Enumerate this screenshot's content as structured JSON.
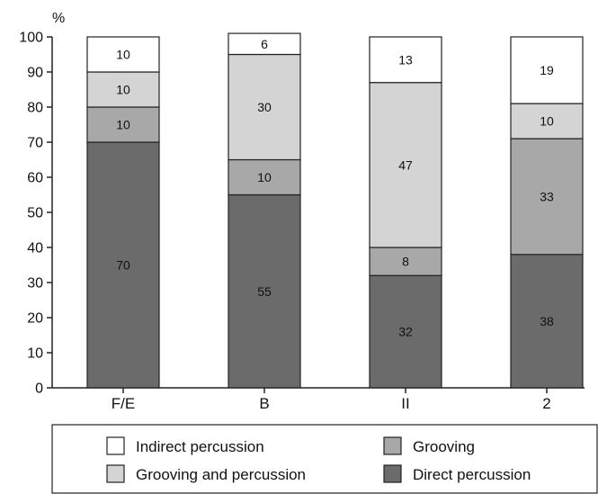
{
  "chart_data": {
    "type": "bar",
    "stacked": true,
    "ylabel": "%",
    "ylim": [
      0,
      100
    ],
    "yticks": [
      "0",
      "10",
      "20",
      "30",
      "40",
      "50",
      "60",
      "70",
      "80",
      "90",
      "100"
    ],
    "categories": [
      "F/E",
      "B",
      "II",
      "2"
    ],
    "series": [
      {
        "name": "Direct percussion",
        "color": "#6b6b6b",
        "values": [
          70,
          55,
          32,
          38
        ],
        "labels": [
          "70",
          "55",
          "32",
          "38"
        ]
      },
      {
        "name": "Grooving",
        "color": "#a8a8a8",
        "values": [
          10,
          10,
          8,
          33
        ],
        "labels": [
          "10",
          "10",
          "8",
          "33"
        ]
      },
      {
        "name": "Grooving and percussion",
        "color": "#d4d4d4",
        "values": [
          10,
          30,
          47,
          10
        ],
        "labels": [
          "10",
          "30",
          "47",
          "10"
        ]
      },
      {
        "name": "Indirect percussion",
        "color": "#ffffff",
        "values": [
          10,
          6,
          13,
          19
        ],
        "labels": [
          "10",
          "6",
          "13",
          "19"
        ]
      }
    ],
    "legend": {
      "position": "bottom",
      "order": [
        "Indirect percussion",
        "Grooving",
        "Grooving and percussion",
        "Direct percussion"
      ]
    },
    "grid": false
  }
}
